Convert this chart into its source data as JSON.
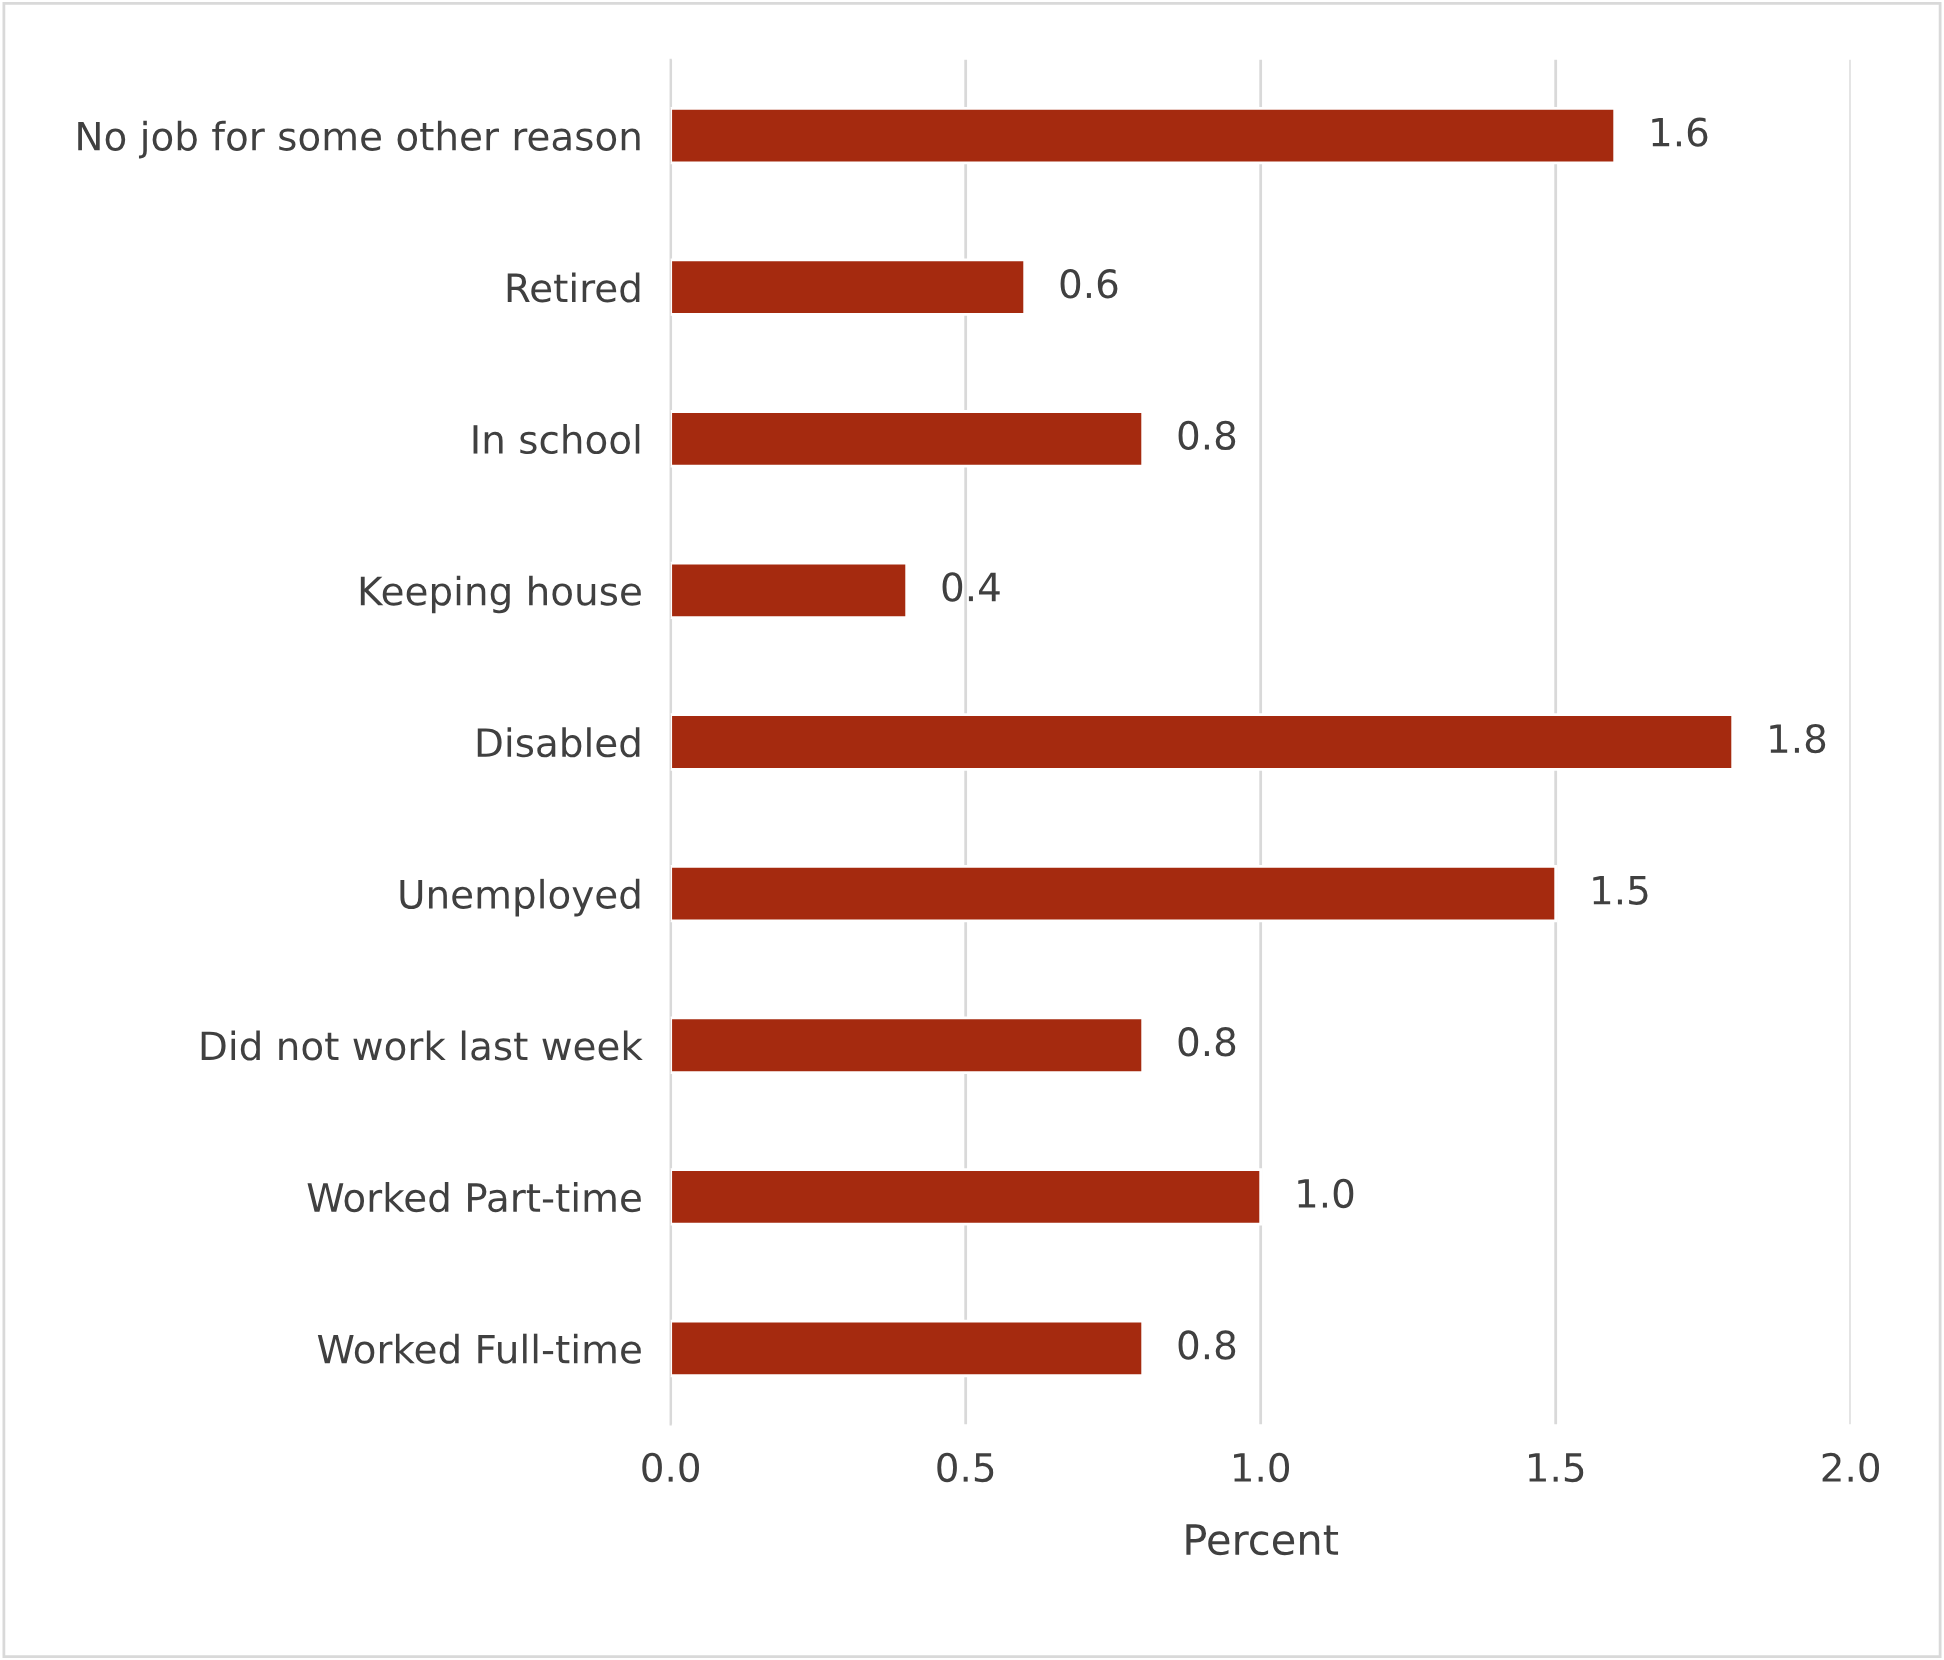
{
  "chart_data": {
    "type": "bar",
    "orientation": "horizontal",
    "xlabel": "Percent",
    "categories": [
      "No job for some other reason",
      "Retired",
      "In school",
      "Keeping house",
      "Disabled",
      "Unemployed",
      "Did not work last week",
      "Worked Part-time",
      "Worked Full-time"
    ],
    "values": [
      1.6,
      0.6,
      0.8,
      0.4,
      1.8,
      1.5,
      0.8,
      1.0,
      0.8
    ],
    "value_labels": [
      "1.6",
      "0.6",
      "0.8",
      "0.4",
      "1.8",
      "1.5",
      "0.8",
      "1.0",
      "0.8"
    ],
    "color": "#a52a0f",
    "xlim": [
      0,
      2
    ],
    "xticks": [
      {
        "value": 0,
        "label": "0.0"
      },
      {
        "value": 0.5,
        "label": "0.5"
      },
      {
        "value": 1,
        "label": "1.0"
      },
      {
        "value": 1.5,
        "label": "1.5"
      },
      {
        "value": 2,
        "label": "2.0"
      }
    ],
    "grid": "x",
    "legend": false
  }
}
